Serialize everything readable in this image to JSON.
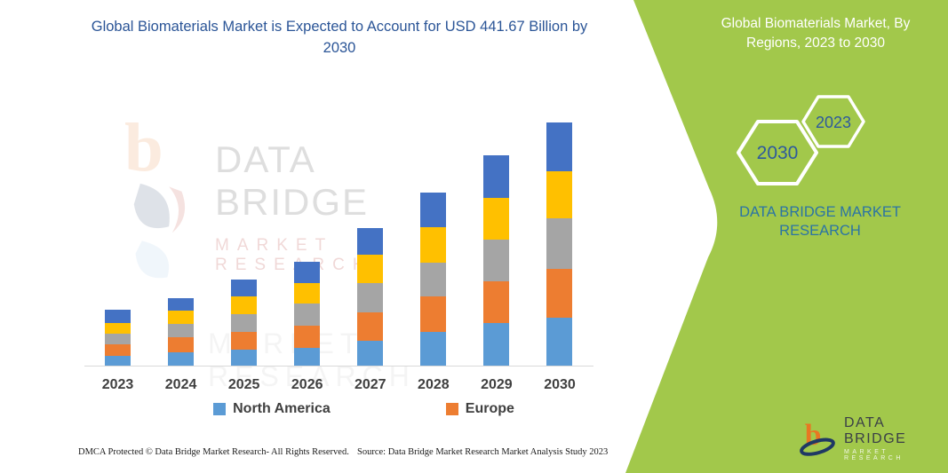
{
  "chart": {
    "title": "Global Biomaterials Market is Expected to Account for USD 441.67 Billion by 2030",
    "legend": [
      {
        "label": "North America",
        "color": "#5B9BD5"
      },
      {
        "label": "Europe",
        "color": "#ED7D31"
      }
    ]
  },
  "chart_data": {
    "type": "bar",
    "stacked": true,
    "title": "Global Biomaterials Market is Expected to Account for USD 441.67 Billion by 2030",
    "categories": [
      "2023",
      "2024",
      "2025",
      "2026",
      "2027",
      "2028",
      "2029",
      "2030"
    ],
    "series": [
      {
        "name": "North America",
        "color": "#5B9BD5",
        "values": [
          17.7,
          24.2,
          29.0,
          32.2,
          45.1,
          61.3,
          77.4,
          87.1
        ]
      },
      {
        "name": "Europe",
        "color": "#ED7D31",
        "values": [
          21.0,
          27.4,
          32.2,
          40.3,
          51.6,
          64.5,
          75.8,
          88.7
        ]
      },
      {
        "name": "Unlabeled series (gray)",
        "color": "#A5A5A5",
        "values": [
          19.3,
          24.2,
          32.2,
          40.3,
          53.2,
          61.3,
          75.8,
          91.9
        ]
      },
      {
        "name": "Unlabeled series (yellow)",
        "color": "#FFC000",
        "values": [
          19.3,
          24.2,
          32.2,
          37.1,
          51.6,
          64.5,
          75.8,
          85.4
        ]
      },
      {
        "name": "Unlabeled series (dark blue)",
        "color": "#4472C4",
        "values": [
          24.2,
          22.6,
          30.6,
          38.7,
          48.4,
          62.9,
          77.4,
          88.7
        ]
      }
    ],
    "totals_estimated": [
      101.5,
      122.6,
      156.2,
      188.6,
      249.9,
      314.5,
      382.2,
      441.67
    ],
    "units": "USD Billion",
    "xlabel": "",
    "ylabel": "",
    "ylim": [
      0,
      460
    ],
    "grid": false,
    "y_axis_visible": false,
    "legend_position": "bottom"
  },
  "side_panel": {
    "title": "Global Biomaterials Market, By Regions, 2023 to 2030",
    "hexagons": {
      "large": "2030",
      "small": "2023"
    },
    "brand_line1": "DATA BRIDGE MARKET",
    "brand_line2": "RESEARCH",
    "colors": {
      "background": "#A2C84B",
      "title_text": "#FFFFFF",
      "brand_text": "#2B74A4",
      "hexagon_outline": "#FFFFFF",
      "hexagon_year_text": "#2E5A9C"
    }
  },
  "watermark": {
    "line1": "DATA BRIDGE",
    "line2": "MARKET RESEARCH"
  },
  "logo": {
    "name": "DATA BRIDGE",
    "subtitle": "MARKET RESEARCH"
  },
  "footer": {
    "left": "DMCA Protected © Data Bridge Market Research-  All Rights Reserved.",
    "right": "Source: Data Bridge Market Research  Market Analysis Study 2023"
  }
}
